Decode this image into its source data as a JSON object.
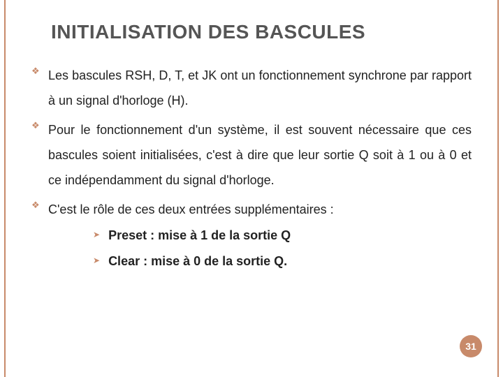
{
  "title": "INITIALISATION DES BASCULES",
  "bullets": [
    "Les bascules RSH, D, T, et JK ont un fonctionnement synchrone par rapport à un    signal d'horloge (H).",
    "Pour le fonctionnement d'un système, il est souvent nécessaire que ces bascules soient initialisées, c'est à dire que leur sortie Q soit à 1 ou à 0 et ce indépendamment du signal d'horloge.",
    "C'est le rôle de ces deux entrées supplémentaires :"
  ],
  "subitems": [
    "Preset : mise à 1 de la sortie Q",
    "Clear : mise à 0 de la sortie Q."
  ],
  "page_number": "31",
  "colors": {
    "accent": "#c88a6a",
    "title_text": "#555555",
    "body_text": "#222222",
    "background": "#ffffff"
  },
  "typography": {
    "title_fontsize": 28,
    "body_fontsize": 18,
    "sub_fontsize": 18,
    "font_family": "Arial"
  }
}
